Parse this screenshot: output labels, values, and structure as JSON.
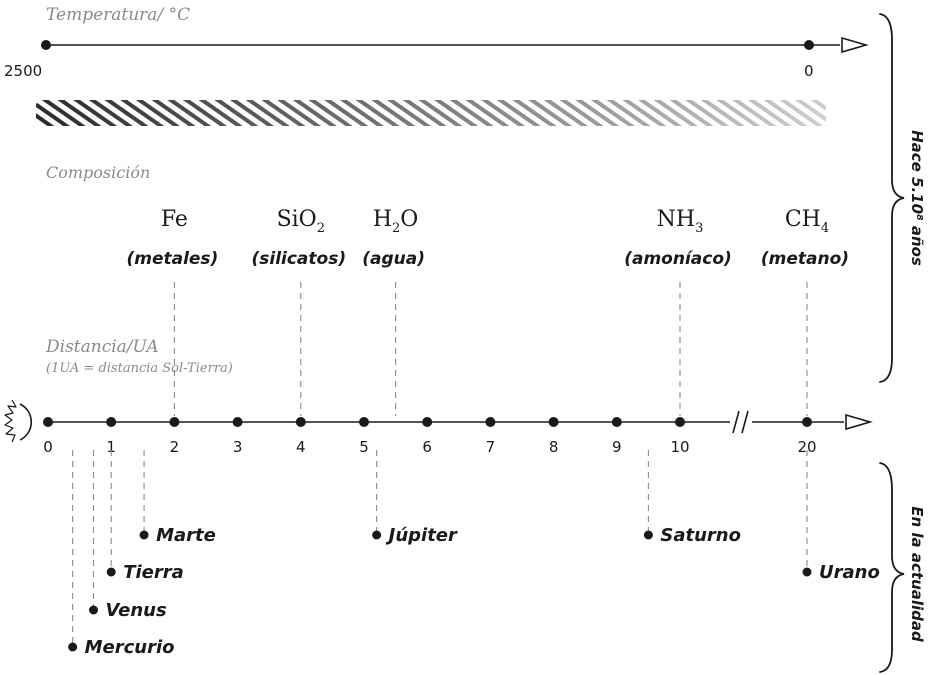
{
  "temperature": {
    "title": "Temperatura/ °C",
    "start_label": "2500",
    "end_label": "0",
    "gradient_colors": [
      "#2b2b2b",
      "#666666",
      "#9a9a9a",
      "#cfcfcf"
    ]
  },
  "composition": {
    "title": "Composición",
    "items": [
      {
        "symbol": "Fe",
        "subscript": "",
        "tail": "",
        "name": "(metales)",
        "au": 2
      },
      {
        "symbol": "SiO",
        "subscript": "2",
        "tail": "",
        "name": "(silicatos)",
        "au": 4
      },
      {
        "symbol": "H",
        "subscript": "2",
        "tail": "O",
        "name": "(agua)",
        "au": 5.5
      },
      {
        "symbol": "NH",
        "subscript": "3",
        "tail": "",
        "name": "(amoníaco)",
        "au": 10
      },
      {
        "symbol": "CH",
        "subscript": "4",
        "tail": "",
        "name": "(metano)",
        "au": 20
      }
    ]
  },
  "distance": {
    "title": "Distancia/UA",
    "subtitle": "(1UA = distancia Sol-Tierra)",
    "ticks": [
      "0",
      "1",
      "2",
      "3",
      "4",
      "5",
      "6",
      "7",
      "8",
      "9",
      "10",
      "20"
    ]
  },
  "planets": [
    {
      "name": "Mercurio",
      "au": 0.39
    },
    {
      "name": "Venus",
      "au": 0.72
    },
    {
      "name": "Tierra",
      "au": 1
    },
    {
      "name": "Marte",
      "au": 1.52
    },
    {
      "name": "Júpiter",
      "au": 5.2
    },
    {
      "name": "Saturno",
      "au": 9.5
    },
    {
      "name": "Urano",
      "au": 19.2
    }
  ],
  "side_labels": {
    "past": "Hace 5.10⁸ años",
    "present": "En la actualidad"
  }
}
